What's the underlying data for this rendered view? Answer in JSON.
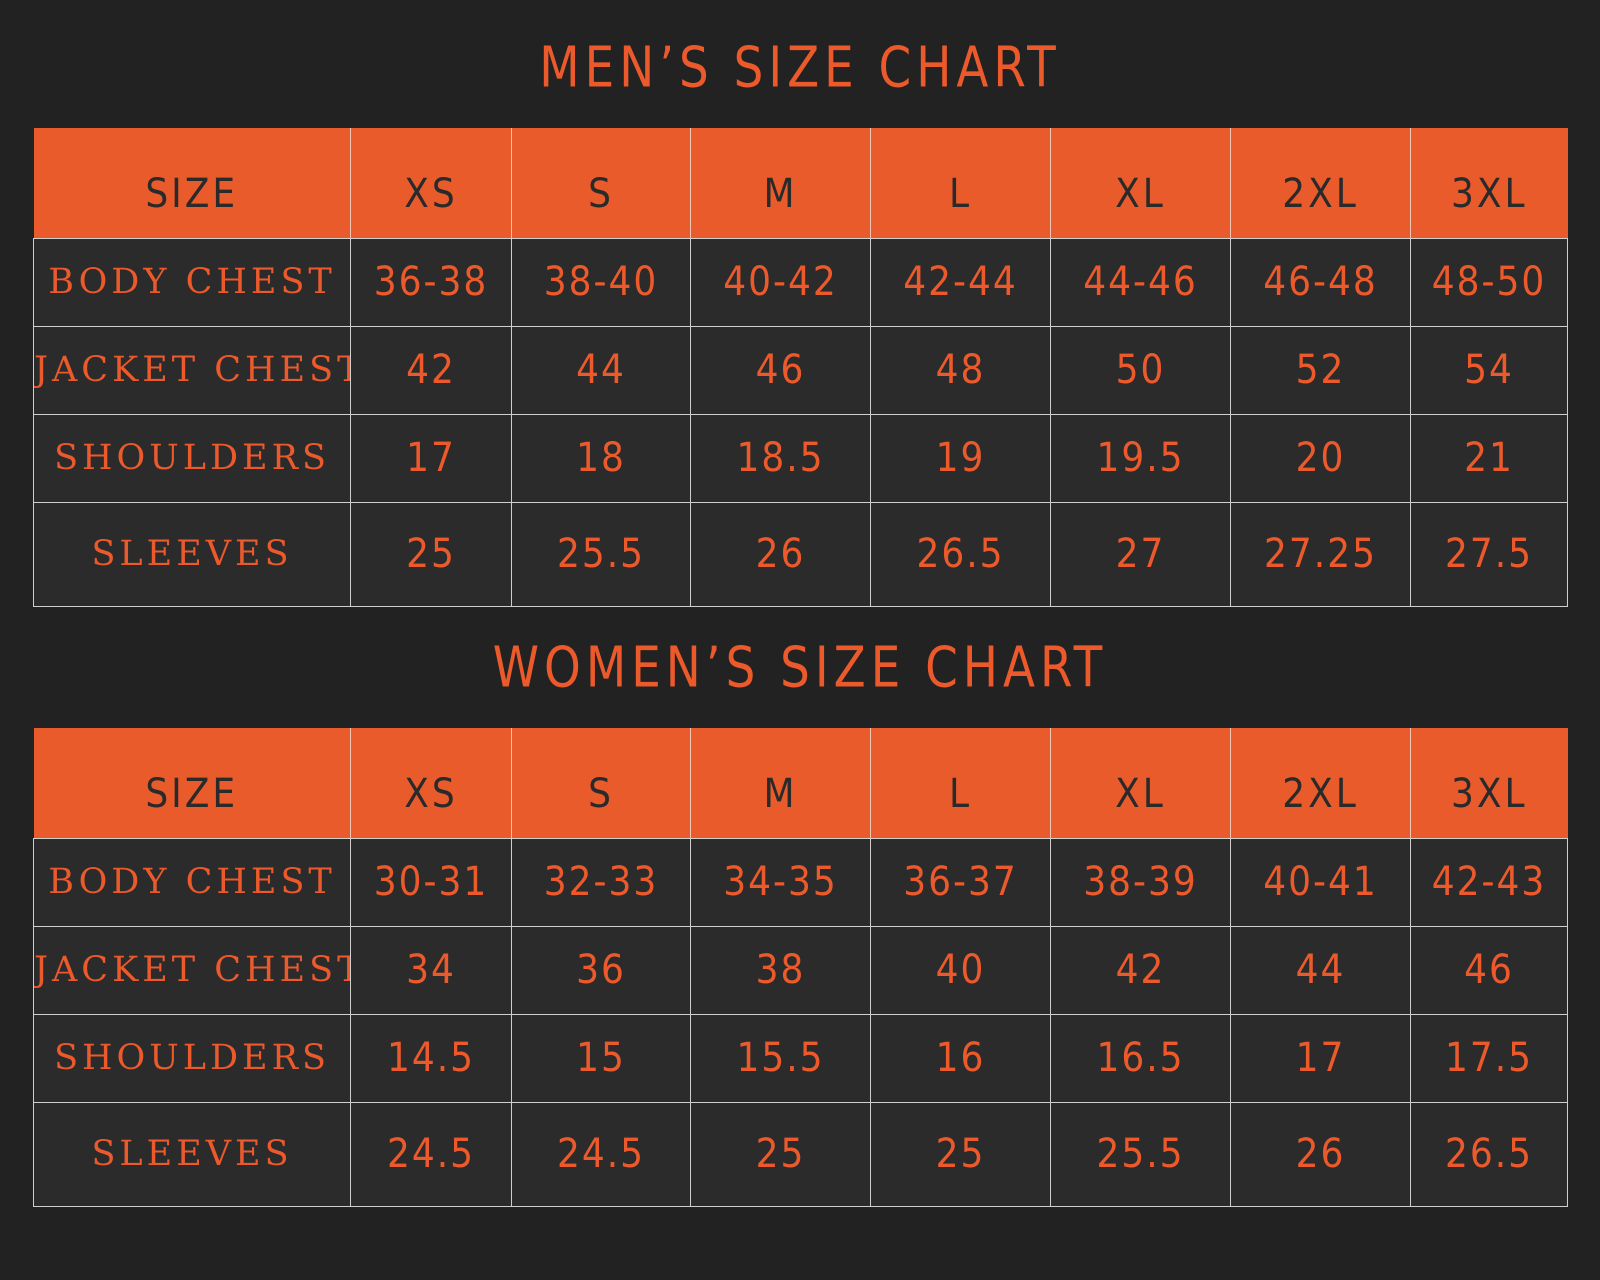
{
  "chart_data": [
    {
      "type": "table",
      "title": "MEN’S SIZE CHART",
      "columns": [
        "SIZE",
        "XS",
        "S",
        "M",
        "L",
        "XL",
        "2XL",
        "3XL"
      ],
      "rows": [
        {
          "label": "BODY CHEST",
          "values": [
            "36-38",
            "38-40",
            "40-42",
            "42-44",
            "44-46",
            "46-48",
            "48-50"
          ]
        },
        {
          "label": "JACKET CHEST",
          "values": [
            "42",
            "44",
            "46",
            "48",
            "50",
            "52",
            "54"
          ]
        },
        {
          "label": "SHOULDERS",
          "values": [
            "17",
            "18",
            "18.5",
            "19",
            "19.5",
            "20",
            "21"
          ]
        },
        {
          "label": "SLEEVES",
          "values": [
            "25",
            "25.5",
            "26",
            "26.5",
            "27",
            "27.25",
            "27.5"
          ]
        }
      ]
    },
    {
      "type": "table",
      "title": "WOMEN’S SIZE CHART",
      "columns": [
        "SIZE",
        "XS",
        "S",
        "M",
        "L",
        "XL",
        "2XL",
        "3XL"
      ],
      "rows": [
        {
          "label": "BODY CHEST",
          "values": [
            "30-31",
            "32-33",
            "34-35",
            "36-37",
            "38-39",
            "40-41",
            "42-43"
          ]
        },
        {
          "label": "JACKET CHEST",
          "values": [
            "34",
            "36",
            "38",
            "40",
            "42",
            "44",
            "46"
          ]
        },
        {
          "label": "SHOULDERS",
          "values": [
            "14.5",
            "15",
            "15.5",
            "16",
            "16.5",
            "17",
            "17.5"
          ]
        },
        {
          "label": "SLEEVES",
          "values": [
            "24.5",
            "24.5",
            "25",
            "25",
            "25.5",
            "26",
            "26.5"
          ]
        }
      ]
    }
  ],
  "colors": {
    "background": "#222222",
    "accent": "#ea5b2c",
    "cell_background": "#2b2b2b",
    "header_text": "#2a2a2a",
    "grid": "#cfcfcf"
  }
}
